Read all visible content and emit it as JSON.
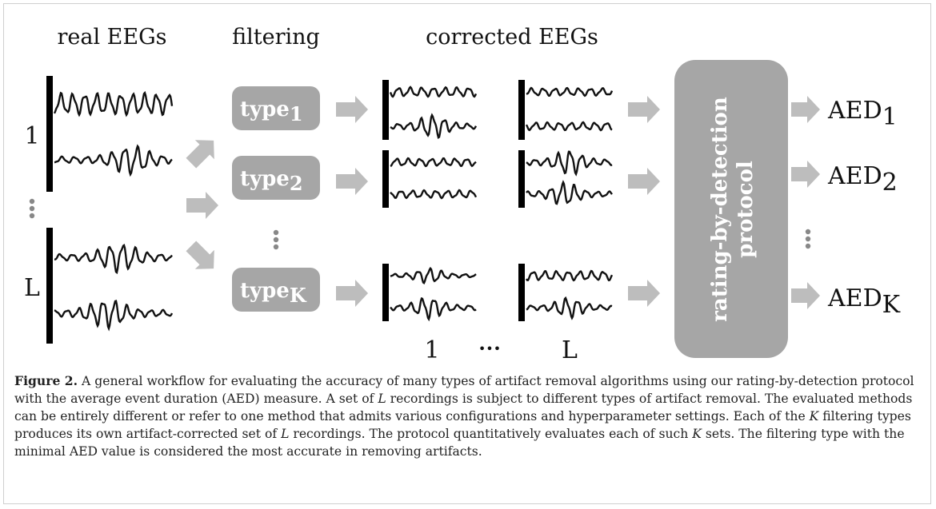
{
  "headings": {
    "real": "real EEGs",
    "filtering": "filtering",
    "corrected": "corrected EEGs"
  },
  "recordings": {
    "first": "1",
    "last": "L"
  },
  "types": [
    {
      "name": "type",
      "sub": "1"
    },
    {
      "name": "type",
      "sub": "2"
    },
    {
      "name": "type",
      "sub": "K"
    }
  ],
  "corrected_sets": {
    "first": "1",
    "ellipsis": "•••",
    "last": "L"
  },
  "protocol": {
    "line1": "rating-by-detection",
    "line2": "protocol"
  },
  "outputs": [
    {
      "name": "AED",
      "sub": "1"
    },
    {
      "name": "AED",
      "sub": "2"
    },
    {
      "name": "AED",
      "sub": "K"
    }
  ],
  "caption": {
    "label": "Figure 2.",
    "parts": [
      " A general workflow for evaluating the accuracy of many types of artifact removal algorithms using our rating-by-detection protocol with the average event duration (AED) measure. A set of ",
      "L",
      " recordings is subject to different types of artifact removal. The evaluated methods can be entirely different or refer to one method that admits various configurations and hyperparameter settings. Each of the ",
      "K",
      " filtering types produces its own artifact-corrected set of ",
      "L",
      " recordings. The protocol quantitatively evaluates each of such ",
      "K",
      " sets. The filtering type with the minimal AED value is considered the most accurate in removing artifacts."
    ]
  }
}
